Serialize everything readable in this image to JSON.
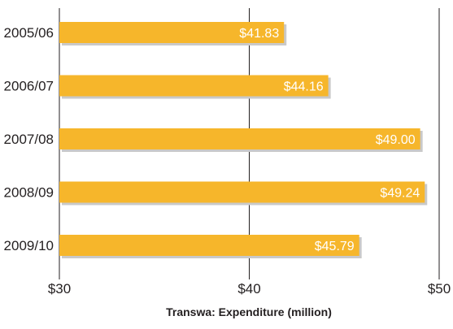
{
  "chart_data": {
    "type": "bar",
    "orientation": "horizontal",
    "categories": [
      "2005/06",
      "2006/07",
      "2007/08",
      "2008/09",
      "2009/10"
    ],
    "values": [
      41.83,
      44.16,
      49.0,
      49.24,
      45.79
    ],
    "value_labels": [
      "$41.83",
      "$44.16",
      "$49.00",
      "$49.24",
      "$45.79"
    ],
    "xlim": [
      30,
      50
    ],
    "xticks": [
      30,
      40,
      50
    ],
    "xtick_labels": [
      "$30",
      "$40",
      "$50"
    ],
    "xlabel": "Transwa: Expenditure (million)",
    "title": "",
    "grid": true,
    "bar_color": "#f6b62b",
    "shadow_color": "#c9c9c9"
  }
}
